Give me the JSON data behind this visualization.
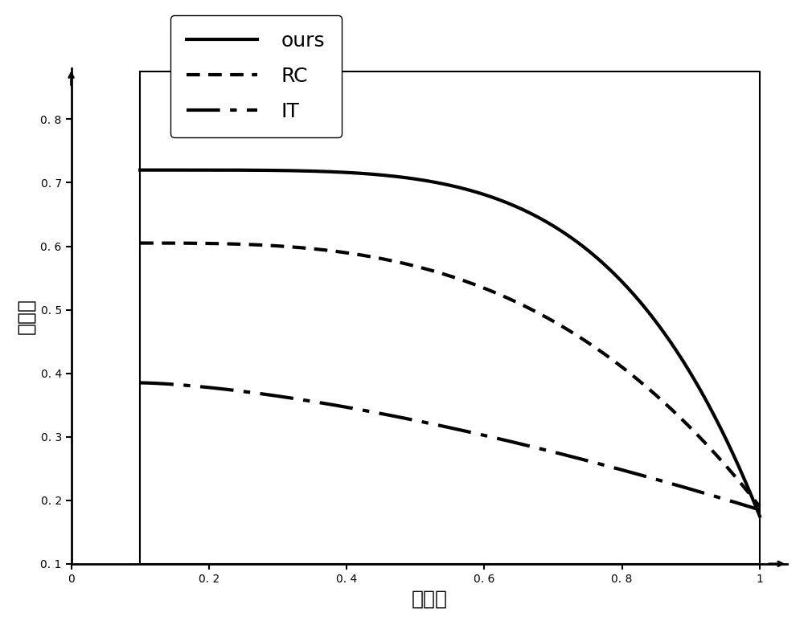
{
  "title": "",
  "xlabel": "召回率",
  "ylabel": "准确率",
  "x_ticks": [
    0,
    0.2,
    0.4,
    0.6,
    0.8,
    1.0
  ],
  "y_ticks": [
    0.1,
    0.2,
    0.3,
    0.4,
    0.5,
    0.6,
    0.7,
    0.8
  ],
  "x_tick_labels": [
    "0",
    "0. 2",
    "0. 4",
    "0. 6",
    "0. 8",
    "1"
  ],
  "y_tick_labels": [
    "0. 1",
    "0. 2",
    "0. 3",
    "0. 4",
    "0. 5",
    "0. 6",
    "0. 7",
    "0. 8"
  ],
  "lines": [
    {
      "label": "ours",
      "style": "solid",
      "linewidth": 3.0,
      "color": "#000000",
      "y_start": 0.72,
      "y_end": 0.175,
      "power": 4.5
    },
    {
      "label": "RC",
      "style": "dotted",
      "linewidth": 3.0,
      "color": "#000000",
      "y_start": 0.605,
      "y_end": 0.19,
      "power": 3.0
    },
    {
      "label": "IT",
      "style": "dashdot",
      "linewidth": 3.0,
      "color": "#000000",
      "y_start": 0.385,
      "y_end": 0.185,
      "power": 1.5
    }
  ],
  "legend_fontsize": 18,
  "tick_fontsize": 18,
  "label_fontsize": 18,
  "background_color": "#ffffff"
}
